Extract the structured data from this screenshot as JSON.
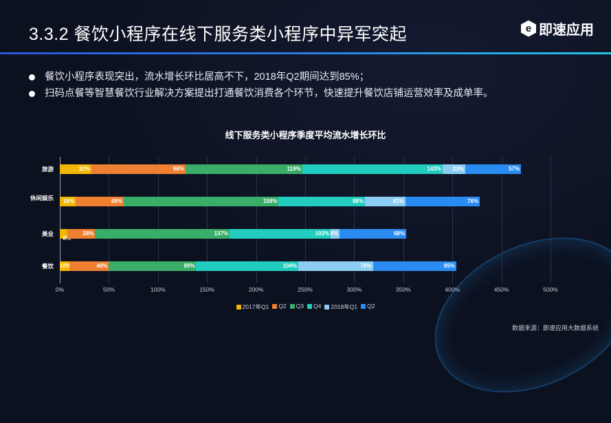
{
  "header": {
    "title": "3.3.2   餐饮小程序在线下服务类小程序中异军突起",
    "logo_text": "即速应用",
    "logo_mark": "e"
  },
  "bullets": [
    "餐饮小程序表现突出，流水增长环比居高不下，2018年Q2期间达到85%；",
    "扫码点餐等智慧餐饮行业解决方案提出打通餐饮消费各个环节，快速提升餐饮店铺运营效率及成单率。"
  ],
  "source": "数据来源：即速应用大数据系统",
  "chart_data": {
    "type": "bar",
    "orientation": "horizontal",
    "stacked": true,
    "title": "线下服务类小程序季度平均流水增长环比",
    "categories": [
      "旅游",
      "休闲娱乐",
      "美业",
      "餐饮"
    ],
    "xlim": [
      0,
      500
    ],
    "ticks": [
      "0%",
      "50%",
      "100%",
      "150%",
      "200%",
      "250%",
      "300%",
      "350%",
      "400%",
      "450%",
      "500%"
    ],
    "grid": true,
    "legend_position": "bottom",
    "series": [
      {
        "name": "2017年Q1",
        "color": "#f2b705",
        "values": [
          32,
          16,
          8,
          10
        ]
      },
      {
        "name": "Q2",
        "color": "#ef8032",
        "values": [
          96,
          49,
          28,
          40
        ]
      },
      {
        "name": "Q3",
        "color": "#3aad68",
        "values": [
          119,
          158,
          137,
          89
        ]
      },
      {
        "name": "Q4",
        "color": "#22cdbf",
        "values": [
          143,
          88,
          103,
          104
        ]
      },
      {
        "name": "2018年Q1",
        "color": "#8dcdf4",
        "values": [
          23,
          41,
          9,
          76
        ]
      },
      {
        "name": "Q2",
        "color": "#2a8cf0",
        "values": [
          57,
          76,
          68,
          85
        ]
      }
    ]
  }
}
